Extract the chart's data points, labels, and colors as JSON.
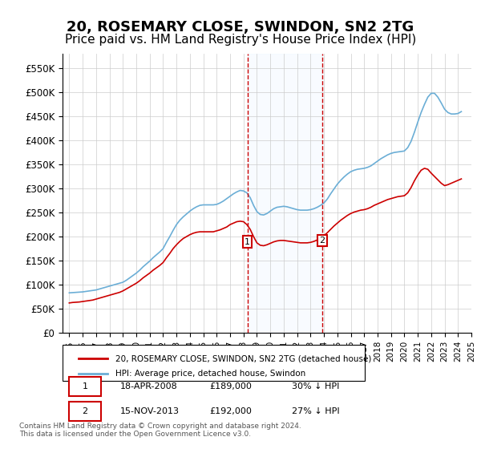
{
  "title": "20, ROSEMARY CLOSE, SWINDON, SN2 2TG",
  "subtitle": "Price paid vs. HM Land Registry's House Price Index (HPI)",
  "xlabel": "",
  "ylabel": "",
  "title_fontsize": 13,
  "subtitle_fontsize": 11,
  "background_color": "#ffffff",
  "grid_color": "#cccccc",
  "hpi_color": "#6baed6",
  "price_color": "#cc0000",
  "annotation_box_color": "#cc0000",
  "shade_color": "#ddeeff",
  "footnote": "Contains HM Land Registry data © Crown copyright and database right 2024.\nThis data is licensed under the Open Government Licence v3.0.",
  "legend_line1": "20, ROSEMARY CLOSE, SWINDON, SN2 2TG (detached house)",
  "legend_line2": "HPI: Average price, detached house, Swindon",
  "sale1_date": "18-APR-2008",
  "sale1_price": "£189,000",
  "sale1_hpi": "30% ↓ HPI",
  "sale2_date": "15-NOV-2013",
  "sale2_price": "£192,000",
  "sale2_hpi": "27% ↓ HPI",
  "hpi_years": [
    1995.0,
    1995.25,
    1995.5,
    1995.75,
    1996.0,
    1996.25,
    1996.5,
    1996.75,
    1997.0,
    1997.25,
    1997.5,
    1997.75,
    1998.0,
    1998.25,
    1998.5,
    1998.75,
    1999.0,
    1999.25,
    1999.5,
    1999.75,
    2000.0,
    2000.25,
    2000.5,
    2000.75,
    2001.0,
    2001.25,
    2001.5,
    2001.75,
    2002.0,
    2002.25,
    2002.5,
    2002.75,
    2003.0,
    2003.25,
    2003.5,
    2003.75,
    2004.0,
    2004.25,
    2004.5,
    2004.75,
    2005.0,
    2005.25,
    2005.5,
    2005.75,
    2006.0,
    2006.25,
    2006.5,
    2006.75,
    2007.0,
    2007.25,
    2007.5,
    2007.75,
    2008.0,
    2008.25,
    2008.5,
    2008.75,
    2009.0,
    2009.25,
    2009.5,
    2009.75,
    2010.0,
    2010.25,
    2010.5,
    2010.75,
    2011.0,
    2011.25,
    2011.5,
    2011.75,
    2012.0,
    2012.25,
    2012.5,
    2012.75,
    2013.0,
    2013.25,
    2013.5,
    2013.75,
    2014.0,
    2014.25,
    2014.5,
    2014.75,
    2015.0,
    2015.25,
    2015.5,
    2015.75,
    2016.0,
    2016.25,
    2016.5,
    2016.75,
    2017.0,
    2017.25,
    2017.5,
    2017.75,
    2018.0,
    2018.25,
    2018.5,
    2018.75,
    2019.0,
    2019.25,
    2019.5,
    2019.75,
    2020.0,
    2020.25,
    2020.5,
    2020.75,
    2021.0,
    2021.25,
    2021.5,
    2021.75,
    2022.0,
    2022.25,
    2022.5,
    2022.75,
    2023.0,
    2023.25,
    2023.5,
    2023.75,
    2024.0,
    2024.25
  ],
  "hpi_values": [
    83000,
    83500,
    84000,
    84500,
    85000,
    86000,
    87000,
    88000,
    89000,
    91000,
    93000,
    95000,
    97000,
    99000,
    101000,
    103000,
    105000,
    109000,
    114000,
    119000,
    124000,
    130000,
    137000,
    143000,
    149000,
    156000,
    162000,
    168000,
    175000,
    188000,
    200000,
    213000,
    225000,
    234000,
    241000,
    247000,
    253000,
    258000,
    262000,
    265000,
    266000,
    266000,
    266000,
    266000,
    267000,
    270000,
    274000,
    279000,
    284000,
    289000,
    293000,
    296000,
    295000,
    291000,
    281000,
    265000,
    252000,
    246000,
    245000,
    248000,
    253000,
    258000,
    261000,
    262000,
    263000,
    262000,
    260000,
    258000,
    256000,
    255000,
    255000,
    255000,
    256000,
    258000,
    261000,
    265000,
    270000,
    278000,
    289000,
    299000,
    309000,
    317000,
    324000,
    330000,
    335000,
    338000,
    340000,
    341000,
    342000,
    344000,
    347000,
    352000,
    357000,
    362000,
    366000,
    370000,
    373000,
    375000,
    376000,
    377000,
    378000,
    385000,
    398000,
    417000,
    438000,
    458000,
    475000,
    490000,
    498000,
    498000,
    490000,
    478000,
    465000,
    458000,
    455000,
    455000,
    456000,
    460000
  ],
  "price_years": [
    1995.0,
    1995.25,
    1995.5,
    1995.75,
    1996.0,
    1996.25,
    1996.5,
    1996.75,
    1997.0,
    1997.25,
    1997.5,
    1997.75,
    1998.0,
    1998.25,
    1998.5,
    1998.75,
    1999.0,
    1999.25,
    1999.5,
    1999.75,
    2000.0,
    2000.25,
    2000.5,
    2000.75,
    2001.0,
    2001.25,
    2001.5,
    2001.75,
    2002.0,
    2002.25,
    2002.5,
    2002.75,
    2003.0,
    2003.25,
    2003.5,
    2003.75,
    2004.0,
    2004.25,
    2004.5,
    2004.75,
    2005.0,
    2005.25,
    2005.5,
    2005.75,
    2006.0,
    2006.25,
    2006.5,
    2006.75,
    2007.0,
    2007.25,
    2007.5,
    2007.75,
    2008.0,
    2008.25,
    2008.5,
    2008.75,
    2009.0,
    2009.25,
    2009.5,
    2009.75,
    2010.0,
    2010.25,
    2010.5,
    2010.75,
    2011.0,
    2011.25,
    2011.5,
    2011.75,
    2012.0,
    2012.25,
    2012.5,
    2012.75,
    2013.0,
    2013.25,
    2013.5,
    2013.75,
    2014.0,
    2014.25,
    2014.5,
    2014.75,
    2015.0,
    2015.25,
    2015.5,
    2015.75,
    2016.0,
    2016.25,
    2016.5,
    2016.75,
    2017.0,
    2017.25,
    2017.5,
    2017.75,
    2018.0,
    2018.25,
    2018.5,
    2018.75,
    2019.0,
    2019.25,
    2019.5,
    2019.75,
    2020.0,
    2020.25,
    2020.5,
    2020.75,
    2021.0,
    2021.25,
    2021.5,
    2021.75,
    2022.0,
    2022.25,
    2022.5,
    2022.75,
    2023.0,
    2023.25,
    2023.5,
    2023.75,
    2024.0,
    2024.25
  ],
  "price_values": [
    62000,
    63000,
    63500,
    64000,
    65000,
    66000,
    67000,
    68000,
    70000,
    72000,
    74000,
    76000,
    78000,
    80000,
    82000,
    84000,
    87000,
    91000,
    95000,
    99000,
    103000,
    108000,
    114000,
    119000,
    124000,
    130000,
    135000,
    140000,
    146000,
    156000,
    165000,
    175000,
    183000,
    190000,
    196000,
    200000,
    204000,
    207000,
    209000,
    210000,
    210000,
    210000,
    210000,
    210000,
    212000,
    214000,
    217000,
    220000,
    225000,
    228000,
    231000,
    232000,
    231000,
    225000,
    215000,
    200000,
    187000,
    182000,
    181000,
    183000,
    186000,
    189000,
    191000,
    192000,
    192000,
    191000,
    190000,
    189000,
    188000,
    187000,
    187000,
    187000,
    188000,
    190000,
    193000,
    197000,
    202000,
    208000,
    215000,
    222000,
    228000,
    234000,
    239000,
    244000,
    248000,
    251000,
    253000,
    255000,
    256000,
    258000,
    261000,
    265000,
    268000,
    271000,
    274000,
    277000,
    279000,
    281000,
    283000,
    284000,
    285000,
    291000,
    302000,
    316000,
    328000,
    338000,
    342000,
    340000,
    332000,
    325000,
    318000,
    311000,
    306000,
    308000,
    311000,
    314000,
    317000,
    320000
  ],
  "sale1_year": 2008.29,
  "sale2_year": 2013.87,
  "sale1_marker_y": 189000,
  "sale2_marker_y": 192000,
  "ylim": [
    0,
    580000
  ],
  "xlim": [
    1994.5,
    2025.0
  ],
  "yticks": [
    0,
    50000,
    100000,
    150000,
    200000,
    250000,
    300000,
    350000,
    400000,
    450000,
    500000,
    550000
  ],
  "ytick_labels": [
    "£0",
    "£50K",
    "£100K",
    "£150K",
    "£200K",
    "£250K",
    "£300K",
    "£350K",
    "£400K",
    "£450K",
    "£500K",
    "£550K"
  ],
  "xticks": [
    1995,
    1996,
    1997,
    1998,
    1999,
    2000,
    2001,
    2002,
    2003,
    2004,
    2005,
    2006,
    2007,
    2008,
    2009,
    2010,
    2011,
    2012,
    2013,
    2014,
    2015,
    2016,
    2017,
    2018,
    2019,
    2020,
    2021,
    2022,
    2023,
    2024,
    2025
  ]
}
